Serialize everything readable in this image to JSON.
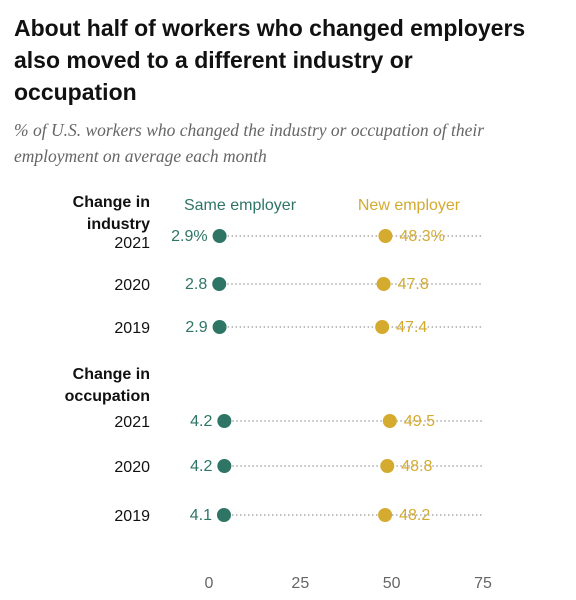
{
  "chart_data": {
    "type": "dot",
    "title": "About half of workers who changed employers also moved to a different industry or occupation",
    "subtitle": "% of U.S. workers who changed the industry or occupation of their employment on average each month",
    "groups": [
      {
        "label": "Change in industry",
        "categories": [
          "2021",
          "2020",
          "2019"
        ]
      },
      {
        "label": "Change in occupation",
        "categories": [
          "2021",
          "2020",
          "2019"
        ]
      }
    ],
    "series": [
      {
        "name": "Same employer",
        "color": "#2e7566",
        "values": [
          [
            2.9,
            2.8,
            2.9
          ],
          [
            4.2,
            4.2,
            4.1
          ]
        ],
        "value_labels": [
          [
            "2.9%",
            "2.8",
            "2.9"
          ],
          [
            "4.2",
            "4.2",
            "4.1"
          ]
        ]
      },
      {
        "name": "New employer",
        "color": "#d4aa2f",
        "values": [
          [
            48.3,
            47.8,
            47.4
          ],
          [
            49.5,
            48.8,
            48.2
          ]
        ],
        "value_labels": [
          [
            "48.3%",
            "47.8",
            "47.4"
          ],
          [
            "49.5",
            "48.8",
            "48.2"
          ]
        ]
      }
    ],
    "xlim": [
      0,
      75
    ],
    "xticks": [
      0,
      25,
      50,
      75
    ]
  }
}
